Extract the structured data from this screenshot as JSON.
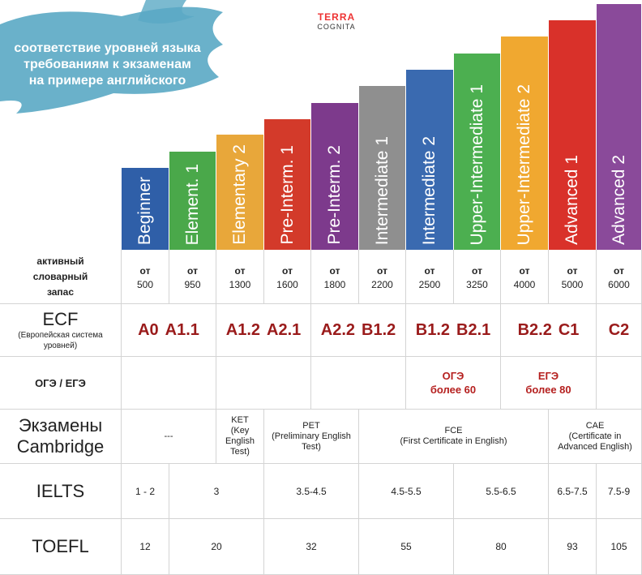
{
  "header": {
    "title": [
      "соответствие уровней языка",
      "требованиям к экзаменам",
      "на примере английского"
    ],
    "logo": [
      "TERRA",
      "COGNITA"
    ]
  },
  "levels": [
    "Beginner",
    "Element. 1",
    "Elementary 2",
    "Pre-Interm. 1",
    "Pre-Interm. 2",
    "Intermediate 1",
    "Intermediate 2",
    "Upper-Intermediate 1",
    "Upper-Intermediate 2",
    "Advanced 1",
    "Advanced 2"
  ],
  "rows": {
    "vocab": {
      "label": [
        "активный",
        "словарный",
        "запас"
      ],
      "prefix": "от",
      "values": [
        500,
        950,
        1300,
        1600,
        1800,
        2200,
        2500,
        3250,
        4000,
        5000,
        6000
      ]
    },
    "ecf": {
      "label": "ECF",
      "sublabel": "(Европейская система уровней)",
      "values": [
        "A0",
        "A1.1",
        "A1.2",
        "A2.1",
        "A2.2",
        "B1.2",
        "B1.2",
        "B2.1",
        "B2.2",
        "C1",
        "C2"
      ]
    },
    "state": {
      "label": "ОГЭ / ЕГЭ",
      "cells": [
        [
          "ОГЭ",
          "более 60"
        ],
        [
          "ЕГЭ",
          "более 80"
        ]
      ]
    },
    "cambridge": {
      "label": [
        "Экзамены",
        "Cambridge"
      ],
      "cells": [
        [
          "---"
        ],
        [
          "KET",
          "(Key",
          "English",
          "Test)"
        ],
        [
          "PET",
          "(Preliminary English",
          "Test)"
        ],
        [
          "FCE",
          "(First Certificate in English)"
        ],
        [
          "CAE",
          "(Certificate in",
          "Advanced English)"
        ]
      ]
    },
    "ielts": {
      "label": "IELTS",
      "cells": [
        "1 - 2",
        "3",
        "3.5-4.5",
        "4.5-5.5",
        "5.5-6.5",
        "6.5-7.5",
        "7.5-9"
      ]
    },
    "toefl": {
      "label": "TOEFL",
      "cells": [
        12,
        20,
        32,
        55,
        80,
        93,
        105
      ]
    }
  }
}
